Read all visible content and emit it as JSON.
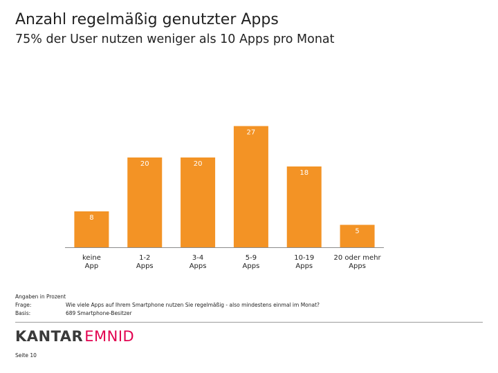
{
  "header": {
    "title": "Anzahl regelmäßig genutzter Apps",
    "subtitle": "75% der User nutzen weniger als 10 Apps pro Monat"
  },
  "chart_data": {
    "type": "bar",
    "categories": [
      [
        "keine",
        "App"
      ],
      [
        "1-2",
        "Apps"
      ],
      [
        "3-4",
        "Apps"
      ],
      [
        "5-9",
        "Apps"
      ],
      [
        "10-19",
        "Apps"
      ],
      [
        "20 oder mehr",
        "Apps"
      ]
    ],
    "values": [
      8,
      20,
      20,
      27,
      18,
      5
    ],
    "ylim": [
      0,
      30
    ],
    "bar_color": "#f39325",
    "label_color": "#ffffff",
    "grid": false,
    "legend": "none"
  },
  "notes": {
    "unit_note": "Angaben in Prozent",
    "question_label": "Frage:",
    "question_text": "Wie viele Apps auf Ihrem Smartphone nutzen Sie regelmäßig - also mindestens einmal im Monat?",
    "basis_label": "Basis:",
    "basis_text": "689 Smartphone-Besitzer"
  },
  "footer": {
    "logo_kantar": "KANTAR",
    "logo_emnid": "EMNID",
    "page": "Seite 10",
    "logo_accent": "#e2004f"
  }
}
